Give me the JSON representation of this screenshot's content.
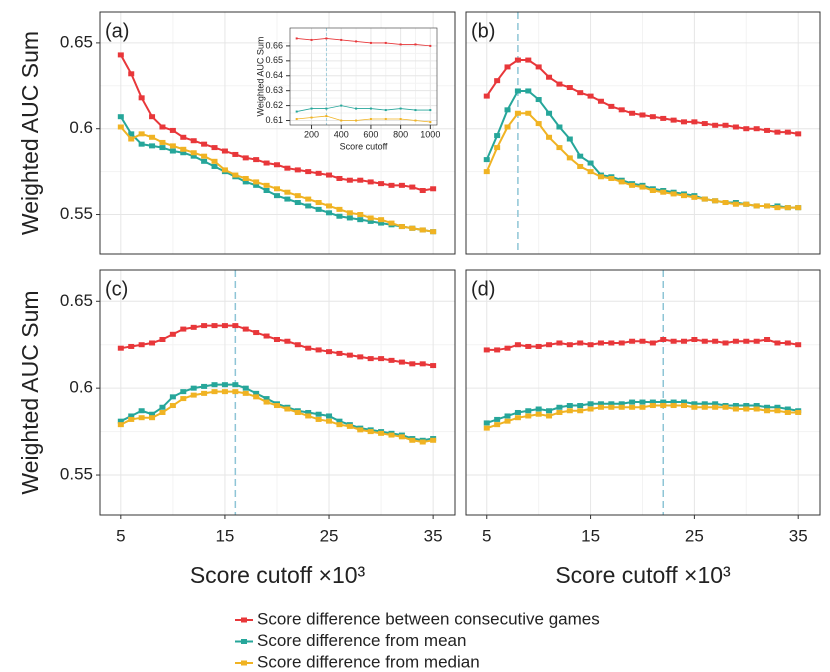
{
  "chart_data": [
    {
      "type": "line",
      "label": "(a)",
      "ylabel": "Weighted AUC Sum",
      "x": [
        5,
        6,
        7,
        8,
        9,
        10,
        11,
        12,
        13,
        14,
        15,
        16,
        17,
        18,
        19,
        20,
        21,
        22,
        23,
        24,
        25,
        26,
        27,
        28,
        29,
        30,
        31,
        32,
        33,
        34,
        35
      ],
      "series": [
        {
          "name": "Score difference between consecutive games",
          "color": "#e8373a",
          "values": [
            0.643,
            0.632,
            0.618,
            0.607,
            0.601,
            0.599,
            0.595,
            0.593,
            0.591,
            0.589,
            0.587,
            0.585,
            0.583,
            0.582,
            0.58,
            0.579,
            0.577,
            0.576,
            0.575,
            0.574,
            0.573,
            0.571,
            0.57,
            0.57,
            0.569,
            0.568,
            0.567,
            0.567,
            0.566,
            0.564,
            0.565
          ]
        },
        {
          "name": "Score difference from mean",
          "color": "#26a69a",
          "values": [
            0.607,
            0.597,
            0.591,
            0.59,
            0.589,
            0.587,
            0.586,
            0.584,
            0.581,
            0.578,
            0.575,
            0.572,
            0.569,
            0.567,
            0.564,
            0.561,
            0.559,
            0.557,
            0.555,
            0.553,
            0.551,
            0.549,
            0.548,
            0.547,
            0.546,
            0.545,
            0.544,
            0.543,
            0.542,
            0.541,
            0.54
          ]
        },
        {
          "name": "Score difference from median",
          "color": "#f0b323",
          "values": [
            0.601,
            0.594,
            0.597,
            0.595,
            0.592,
            0.59,
            0.588,
            0.586,
            0.584,
            0.581,
            0.576,
            0.573,
            0.571,
            0.569,
            0.567,
            0.565,
            0.563,
            0.561,
            0.559,
            0.557,
            0.555,
            0.553,
            0.551,
            0.55,
            0.548,
            0.547,
            0.545,
            0.543,
            0.542,
            0.541,
            0.54
          ]
        }
      ],
      "xlim": [
        3,
        37.1
      ],
      "ylim": [
        0.527,
        0.668
      ],
      "xticks": [
        5,
        15,
        25,
        35
      ],
      "yticks": [
        0.55,
        0.6,
        0.65
      ],
      "grid": true
    },
    {
      "type": "line",
      "label": "(b)",
      "x": [
        5,
        6,
        7,
        8,
        9,
        10,
        11,
        12,
        13,
        14,
        15,
        16,
        17,
        18,
        19,
        20,
        21,
        22,
        23,
        24,
        25,
        26,
        27,
        28,
        29,
        30,
        31,
        32,
        33,
        34,
        35
      ],
      "series": [
        {
          "color": "#e8373a",
          "values": [
            0.619,
            0.628,
            0.636,
            0.64,
            0.64,
            0.636,
            0.63,
            0.626,
            0.624,
            0.621,
            0.619,
            0.616,
            0.613,
            0.611,
            0.609,
            0.608,
            0.607,
            0.606,
            0.605,
            0.604,
            0.604,
            0.603,
            0.602,
            0.602,
            0.601,
            0.6,
            0.6,
            0.599,
            0.598,
            0.598,
            0.597
          ]
        },
        {
          "color": "#26a69a",
          "values": [
            0.582,
            0.596,
            0.611,
            0.622,
            0.622,
            0.617,
            0.609,
            0.601,
            0.594,
            0.584,
            0.58,
            0.573,
            0.572,
            0.57,
            0.568,
            0.567,
            0.565,
            0.564,
            0.563,
            0.562,
            0.561,
            0.559,
            0.558,
            0.557,
            0.557,
            0.556,
            0.555,
            0.555,
            0.555,
            0.554,
            0.554
          ]
        },
        {
          "color": "#f0b323",
          "values": [
            0.575,
            0.589,
            0.601,
            0.609,
            0.609,
            0.603,
            0.595,
            0.589,
            0.583,
            0.578,
            0.575,
            0.572,
            0.571,
            0.569,
            0.567,
            0.566,
            0.564,
            0.563,
            0.562,
            0.561,
            0.56,
            0.559,
            0.558,
            0.557,
            0.556,
            0.556,
            0.555,
            0.555,
            0.554,
            0.554,
            0.554
          ]
        }
      ],
      "xlim": [
        3,
        37.1
      ],
      "ylim": [
        0.527,
        0.668
      ],
      "xticks": [
        5,
        15,
        25,
        35
      ],
      "yticks": [
        0.55,
        0.6,
        0.65
      ],
      "grid": true,
      "vline": 8
    },
    {
      "type": "line",
      "label": "(c)",
      "ylabel": "Weighted AUC Sum",
      "xlabel": "Score cutoff ×10³",
      "x": [
        5,
        6,
        7,
        8,
        9,
        10,
        11,
        12,
        13,
        14,
        15,
        16,
        17,
        18,
        19,
        20,
        21,
        22,
        23,
        24,
        25,
        26,
        27,
        28,
        29,
        30,
        31,
        32,
        33,
        34,
        35
      ],
      "series": [
        {
          "color": "#e8373a",
          "values": [
            0.623,
            0.624,
            0.625,
            0.626,
            0.628,
            0.631,
            0.634,
            0.635,
            0.636,
            0.636,
            0.636,
            0.636,
            0.634,
            0.632,
            0.63,
            0.628,
            0.627,
            0.625,
            0.623,
            0.622,
            0.621,
            0.62,
            0.619,
            0.618,
            0.617,
            0.617,
            0.616,
            0.615,
            0.614,
            0.614,
            0.613
          ]
        },
        {
          "color": "#26a69a",
          "values": [
            0.581,
            0.584,
            0.587,
            0.585,
            0.589,
            0.595,
            0.598,
            0.6,
            0.601,
            0.602,
            0.602,
            0.602,
            0.6,
            0.597,
            0.594,
            0.591,
            0.589,
            0.587,
            0.586,
            0.585,
            0.584,
            0.581,
            0.579,
            0.577,
            0.576,
            0.575,
            0.574,
            0.573,
            0.571,
            0.57,
            0.571
          ]
        },
        {
          "color": "#f0b323",
          "values": [
            0.579,
            0.582,
            0.583,
            0.583,
            0.586,
            0.59,
            0.594,
            0.596,
            0.597,
            0.598,
            0.598,
            0.598,
            0.597,
            0.595,
            0.592,
            0.59,
            0.588,
            0.586,
            0.584,
            0.582,
            0.581,
            0.579,
            0.578,
            0.576,
            0.575,
            0.574,
            0.573,
            0.572,
            0.57,
            0.569,
            0.57
          ]
        }
      ],
      "xlim": [
        3,
        37.1
      ],
      "ylim": [
        0.527,
        0.668
      ],
      "xticks": [
        5,
        15,
        25,
        35
      ],
      "yticks": [
        0.55,
        0.6,
        0.65
      ],
      "grid": true,
      "vline": 16
    },
    {
      "type": "line",
      "label": "(d)",
      "xlabel": "Score cutoff ×10³",
      "x": [
        5,
        6,
        7,
        8,
        9,
        10,
        11,
        12,
        13,
        14,
        15,
        16,
        17,
        18,
        19,
        20,
        21,
        22,
        23,
        24,
        25,
        26,
        27,
        28,
        29,
        30,
        31,
        32,
        33,
        34,
        35
      ],
      "series": [
        {
          "color": "#e8373a",
          "values": [
            0.622,
            0.622,
            0.623,
            0.625,
            0.624,
            0.624,
            0.625,
            0.626,
            0.625,
            0.626,
            0.625,
            0.626,
            0.626,
            0.626,
            0.627,
            0.627,
            0.626,
            0.628,
            0.627,
            0.627,
            0.628,
            0.627,
            0.627,
            0.626,
            0.627,
            0.627,
            0.627,
            0.628,
            0.626,
            0.626,
            0.625
          ]
        },
        {
          "color": "#26a69a",
          "values": [
            0.58,
            0.582,
            0.584,
            0.586,
            0.587,
            0.588,
            0.587,
            0.589,
            0.59,
            0.59,
            0.591,
            0.591,
            0.591,
            0.591,
            0.592,
            0.592,
            0.592,
            0.592,
            0.592,
            0.592,
            0.591,
            0.591,
            0.591,
            0.59,
            0.59,
            0.59,
            0.59,
            0.589,
            0.589,
            0.588,
            0.587
          ]
        },
        {
          "color": "#f0b323",
          "values": [
            0.577,
            0.579,
            0.581,
            0.583,
            0.584,
            0.585,
            0.584,
            0.586,
            0.587,
            0.587,
            0.588,
            0.589,
            0.589,
            0.589,
            0.589,
            0.589,
            0.59,
            0.59,
            0.59,
            0.59,
            0.589,
            0.589,
            0.589,
            0.589,
            0.588,
            0.588,
            0.588,
            0.587,
            0.587,
            0.586,
            0.586
          ]
        }
      ],
      "xlim": [
        3,
        37.1
      ],
      "ylim": [
        0.527,
        0.668
      ],
      "xticks": [
        5,
        15,
        25,
        35
      ],
      "yticks": [
        0.55,
        0.6,
        0.65
      ],
      "grid": true,
      "vline": 22
    },
    {
      "type": "line",
      "ylabel": "Weighted AUC Sum",
      "xlabel": "Score cutoff",
      "x": [
        100,
        200,
        300,
        400,
        500,
        600,
        700,
        800,
        900,
        1000
      ],
      "series": [
        {
          "color": "#e8373a",
          "values": [
            0.665,
            0.664,
            0.665,
            0.664,
            0.663,
            0.662,
            0.662,
            0.661,
            0.661,
            0.66
          ]
        },
        {
          "color": "#26a69a",
          "values": [
            0.616,
            0.618,
            0.618,
            0.62,
            0.618,
            0.618,
            0.617,
            0.618,
            0.617,
            0.617
          ]
        },
        {
          "color": "#f0b323",
          "values": [
            0.611,
            0.612,
            0.613,
            0.61,
            0.61,
            0.611,
            0.611,
            0.611,
            0.61,
            0.609
          ]
        }
      ],
      "xlim": [
        55,
        1045
      ],
      "ylim": [
        0.607,
        0.672
      ],
      "xticks": [
        200,
        400,
        600,
        800,
        1000
      ],
      "yticks": [
        0.61,
        0.62,
        0.63,
        0.64,
        0.65,
        0.66
      ],
      "grid": true,
      "vline": 300
    }
  ]
}
